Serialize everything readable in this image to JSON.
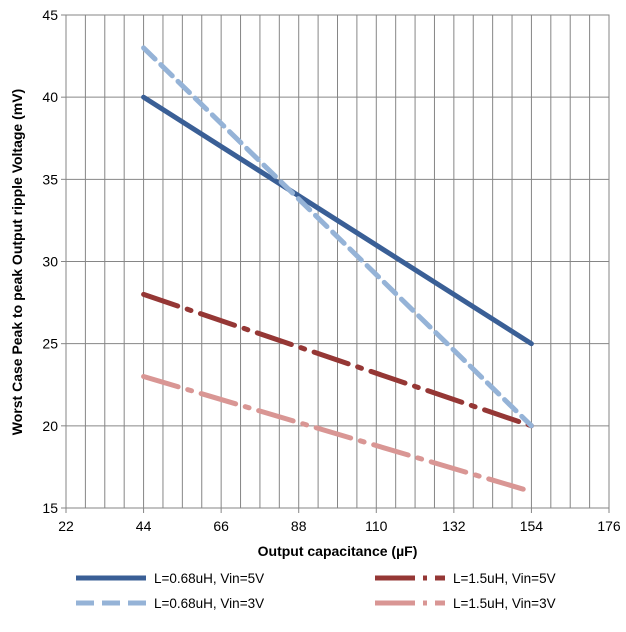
{
  "chart_data": {
    "type": "line",
    "title": "",
    "xlabel": "Output capacitance (µF)",
    "ylabel": "Worst Case Peak to peak Output ripple Voltage (mV)",
    "xlim": [
      22,
      176
    ],
    "ylim": [
      15,
      45
    ],
    "x_ticks": [
      22,
      44,
      66,
      88,
      110,
      132,
      154,
      176
    ],
    "y_ticks": [
      15,
      20,
      25,
      30,
      35,
      40,
      45
    ],
    "x_minor_step": 5.5,
    "grid": true,
    "legend_position": "bottom",
    "series": [
      {
        "name": "L=0.68uH, Vin=5V",
        "x": [
          44,
          154
        ],
        "values": [
          40,
          25
        ],
        "color": "#3a5f96",
        "style": "solid"
      },
      {
        "name": "L=1.5uH, Vin=5V",
        "x": [
          44,
          154
        ],
        "values": [
          28,
          20
        ],
        "color": "#953735",
        "style": "dashdot"
      },
      {
        "name": "L=0.68uH, Vin=3V",
        "x": [
          44,
          154
        ],
        "values": [
          43,
          20
        ],
        "color": "#95b3d7",
        "style": "dashed"
      },
      {
        "name": "L=1.5uH, Vin=3V",
        "x": [
          44,
          154
        ],
        "values": [
          23,
          16
        ],
        "color": "#d99694",
        "style": "dashdot"
      }
    ]
  }
}
